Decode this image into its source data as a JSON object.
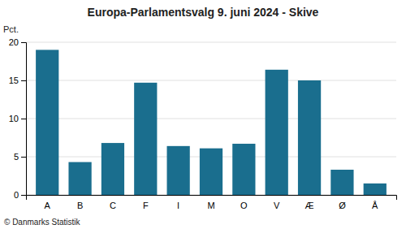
{
  "chart_data": {
    "type": "bar",
    "title": "Europa-Parlamentsvalg 9. juni 2024 - Skive",
    "categories": [
      "A",
      "B",
      "C",
      "F",
      "I",
      "M",
      "O",
      "V",
      "Æ",
      "Ø",
      "Å"
    ],
    "values": [
      19.0,
      4.3,
      6.8,
      14.7,
      6.4,
      6.1,
      6.7,
      16.4,
      15.0,
      3.3,
      1.5
    ],
    "color": "#1a6e8e",
    "ylabel": "Pct.",
    "ylim": [
      0,
      20
    ],
    "yticks": [
      0,
      5,
      10,
      15,
      20
    ],
    "grid": true,
    "footer": "© Danmarks Statistik"
  }
}
